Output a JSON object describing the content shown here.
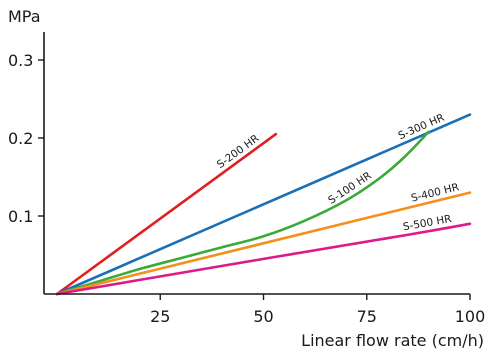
{
  "chart_data": {
    "type": "line",
    "title": "",
    "xlabel": "Linear flow rate (cm/h)",
    "ylabel": "MPa",
    "xlim": [
      0,
      100
    ],
    "ylim": [
      0,
      0.33
    ],
    "xticks": [
      {
        "value": 25,
        "label": "25"
      },
      {
        "value": 50,
        "label": "50"
      },
      {
        "value": 75,
        "label": "75"
      },
      {
        "value": 100,
        "label": "100"
      }
    ],
    "yticks": [
      {
        "value": 0.1,
        "label": "0.1"
      },
      {
        "value": 0.2,
        "label": "0.2"
      },
      {
        "value": 0.3,
        "label": "0.3"
      }
    ],
    "grid": false,
    "legend": "none",
    "series": [
      {
        "name": "S-200 HR",
        "color": "#e02020",
        "points": [
          [
            0,
            0
          ],
          [
            53,
            0.205
          ]
        ],
        "label_at": 45
      },
      {
        "name": "S-300 HR",
        "color": "#1b6fb5",
        "points": [
          [
            0,
            0
          ],
          [
            100,
            0.23
          ]
        ],
        "label_at": 89
      },
      {
        "name": "S-100 HR",
        "color": "#3aaa3a",
        "points": [
          [
            0,
            0
          ],
          [
            10,
            0.016
          ],
          [
            20,
            0.032
          ],
          [
            30,
            0.046
          ],
          [
            40,
            0.06
          ],
          [
            50,
            0.074
          ],
          [
            60,
            0.094
          ],
          [
            70,
            0.12
          ],
          [
            78,
            0.148
          ],
          [
            84,
            0.175
          ],
          [
            90,
            0.208
          ]
        ],
        "label_at": 72
      },
      {
        "name": "S-400 HR",
        "color": "#f39019",
        "points": [
          [
            0,
            0
          ],
          [
            100,
            0.13
          ]
        ],
        "label_at": 92
      },
      {
        "name": "S-500 HR",
        "color": "#e0198a",
        "points": [
          [
            0,
            0
          ],
          [
            50,
            0.045
          ],
          [
            85,
            0.076
          ],
          [
            100,
            0.09
          ]
        ],
        "label_at": 90
      }
    ]
  }
}
